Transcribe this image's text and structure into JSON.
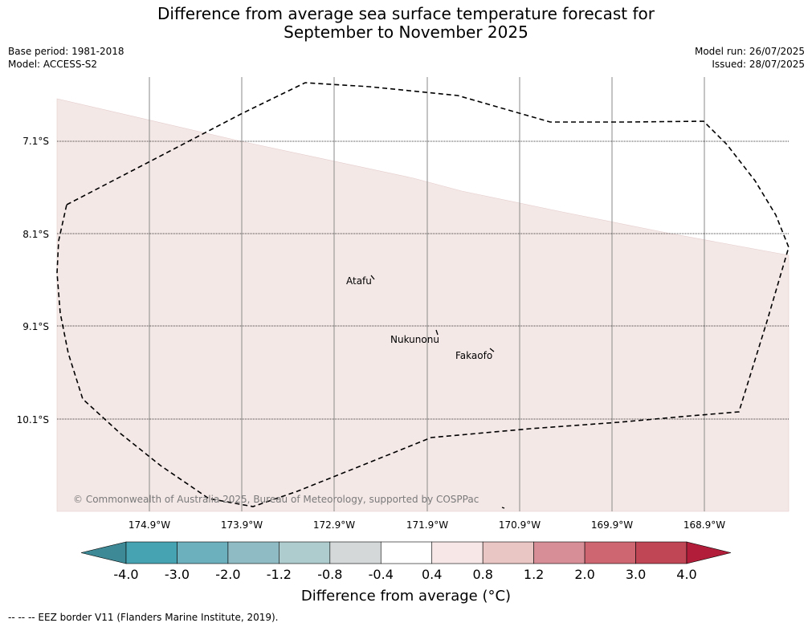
{
  "title": {
    "line1": "Difference from average sea surface temperature forecast for",
    "line2": "September to November 2025"
  },
  "meta": {
    "base_period": "Base period: 1981-2018",
    "model": "Model: ACCESS-S2",
    "model_run": "Model run: 26/07/2025",
    "issued": "Issued: 28/07/2025"
  },
  "map": {
    "lat_labels": [
      "7.1°S",
      "8.1°S",
      "9.1°S",
      "10.1°S"
    ],
    "lon_labels": [
      "174.9°W",
      "173.9°W",
      "172.9°W",
      "171.9°W",
      "170.9°W",
      "169.9°W",
      "168.9°W"
    ],
    "places": [
      "Atafu",
      "Nukunonu",
      "Fakaofo"
    ],
    "copyright": "© Commonwealth of Australia 2025, Bureau of Meteorology, supported by COSPPac",
    "anomaly_fill_color": "#f4e8e7",
    "ocean_color": "#ffffff"
  },
  "colorbar": {
    "tick_labels": [
      "-4.0",
      "-3.0",
      "-2.0",
      "-1.2",
      "-0.8",
      "-0.4",
      "0.4",
      "0.8",
      "1.2",
      "2.0",
      "3.0",
      "4.0"
    ],
    "colors": [
      "#3d8995",
      "#46a3b2",
      "#6cafbd",
      "#8fbbc4",
      "#aecbce",
      "#d4d8d8",
      "#ffffff",
      "#f7e8e7",
      "#e9c6c3",
      "#d88e96",
      "#cd6671",
      "#c04655",
      "#b21e3a"
    ],
    "label": "Difference from average (°C)"
  },
  "footnote": "--  --  -- EEZ border V11 (Flanders Marine Institute, 2019)."
}
